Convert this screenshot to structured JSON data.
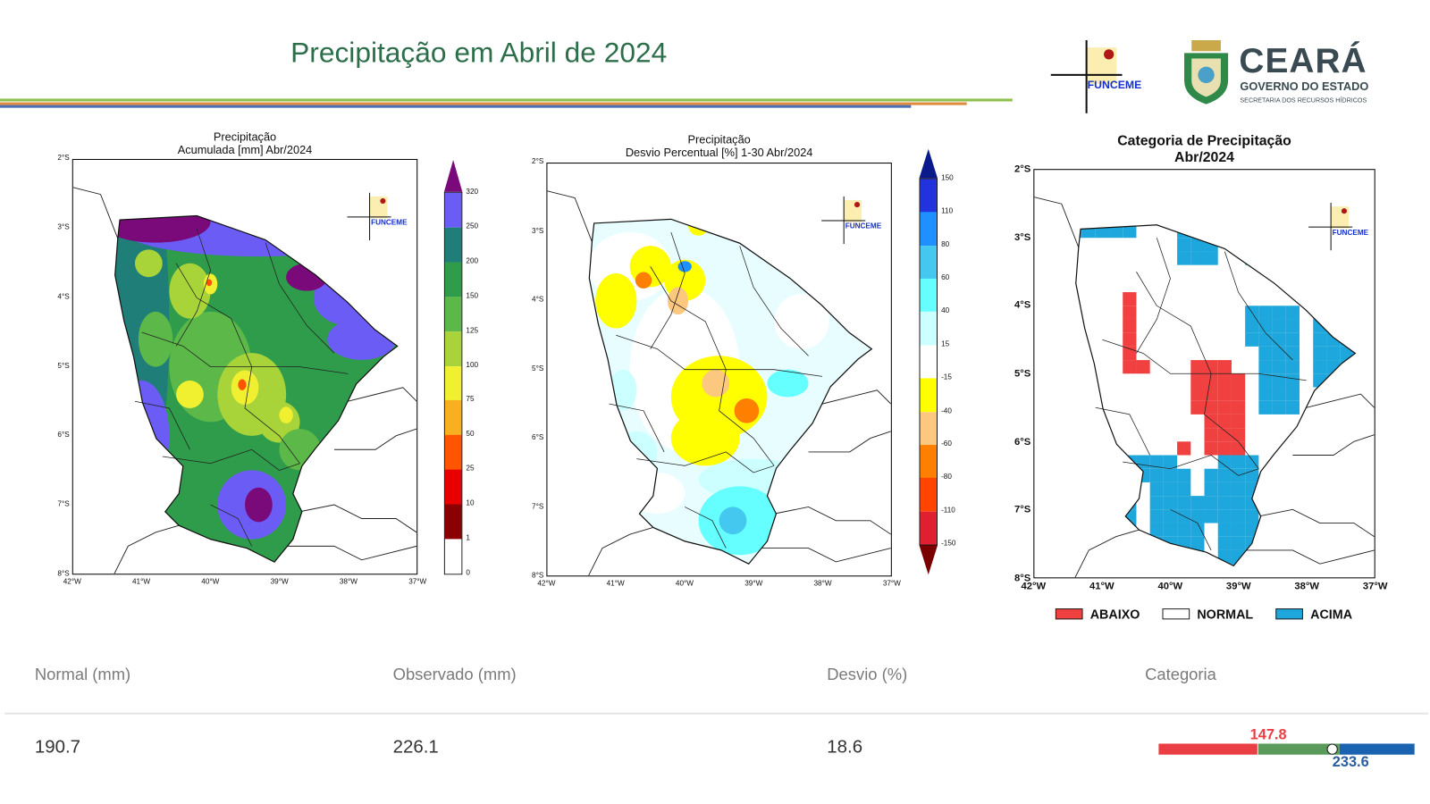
{
  "header": {
    "title": "Precipitação em Abril de 2024",
    "funceme_logo": "FUNCEME",
    "ceara_logo": {
      "name": "CEARÁ",
      "line1": "GOVERNO DO ESTADO",
      "line2": "SECRETARIA DOS RECURSOS HÍDRICOS"
    },
    "stripe_colors": [
      "#8fbf4f",
      "#e08a3c",
      "#4a6fb5"
    ]
  },
  "maps": [
    {
      "title_line1": "Precipitação",
      "title_line2": "Acumulada [mm] Abr/2024",
      "lat_ticks": [
        "2°S",
        "3°S",
        "4°S",
        "5°S",
        "6°S",
        "7°S",
        "8°S"
      ],
      "lon_ticks": [
        "42°W",
        "41°W",
        "40°W",
        "39°W",
        "38°W",
        "37°W"
      ],
      "logo": "FUNCEME",
      "colorbar": {
        "labels": [
          "320",
          "250",
          "200",
          "150",
          "125",
          "100",
          "75",
          "50",
          "25",
          "10",
          "1",
          "0"
        ],
        "colors": [
          "#6b5cf5",
          "#1f7f78",
          "#2e9c4a",
          "#5cb848",
          "#a8d43a",
          "#f0f030",
          "#f9b020",
          "#ff5500",
          "#e80000",
          "#8b0000",
          "#ffffff"
        ],
        "arrow_top": "#7a0a7a"
      }
    },
    {
      "title_line1": "Precipitação",
      "title_line2": "Desvio Percentual [%] 1-30 Abr/2024",
      "lat_ticks": [
        "2°S",
        "3°S",
        "4°S",
        "5°S",
        "6°S",
        "7°S",
        "8°S"
      ],
      "lon_ticks": [
        "42°W",
        "41°W",
        "40°W",
        "39°W",
        "38°W",
        "37°W"
      ],
      "logo": "FUNCEME",
      "colorbar": {
        "labels": [
          "150",
          "110",
          "80",
          "60",
          "40",
          "15",
          "-15",
          "-40",
          "-60",
          "-80",
          "-110",
          "-150"
        ],
        "colors": [
          "#2233dd",
          "#1e90ff",
          "#44c8f0",
          "#66ffff",
          "#ccffff",
          "#ffffff",
          "#ffff00",
          "#fcc880",
          "#ff7f00",
          "#ff4400",
          "#e02030"
        ],
        "arrow_top": "#0a1a8a",
        "arrow_bottom": "#7a0000"
      }
    },
    {
      "title_line1": "Categoria de Precipitação",
      "title_line2": "Abr/2024",
      "lat_ticks": [
        "2°S",
        "3°S",
        "4°S",
        "5°S",
        "6°S",
        "7°S",
        "8°S"
      ],
      "lon_ticks": [
        "42°W",
        "41°W",
        "40°W",
        "39°W",
        "38°W",
        "37°W"
      ],
      "logo": "FUNCEME",
      "legend": [
        {
          "label": "ABAIXO",
          "color": "#f04040"
        },
        {
          "label": "NORMAL",
          "color": "#ffffff"
        },
        {
          "label": "ACIMA",
          "color": "#1ea7dc"
        }
      ]
    }
  ],
  "summary": {
    "headers": [
      "Normal (mm)",
      "Observado (mm)",
      "Desvio (%)",
      "Categoria"
    ],
    "normal": "190.7",
    "observado": "226.1",
    "desvio": "18.6",
    "category_bar": {
      "lower_bound_label": "147.8",
      "upper_bound_label": "233.6",
      "lower_bound": 147.8,
      "upper_bound": 233.6,
      "observed": 226.1,
      "colors": {
        "below": "#ea3e45",
        "normal": "#5a9a5a",
        "above": "#1a63b0"
      }
    }
  }
}
